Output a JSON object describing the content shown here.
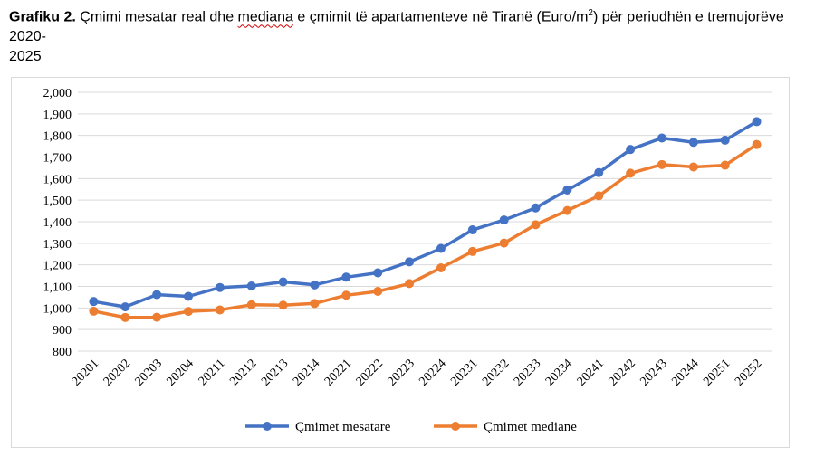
{
  "caption": {
    "label": "Grafiku 2.",
    "text_part1": "Çmimi mesatar real dhe ",
    "text_mediana": "mediana",
    "text_part2": " e çmimit të apartamenteve në Tiranë (Euro/m",
    "text_sup": "2",
    "text_part3": ") për periudhën e tremujorëve 2020-",
    "text_line3": "2025"
  },
  "chart_data": {
    "type": "line",
    "categories": [
      "20201",
      "20202",
      "20203",
      "20204",
      "20211",
      "20212",
      "20213",
      "20214",
      "20221",
      "20222",
      "20223",
      "20224",
      "20231",
      "20232",
      "20233",
      "20234",
      "20241",
      "20242",
      "20243",
      "20244",
      "20251",
      "20252"
    ],
    "series": [
      {
        "name": "Çmimet mesatare",
        "color": "#4472c4",
        "values": [
          1030,
          1005,
          1062,
          1054,
          1095,
          1102,
          1121,
          1107,
          1143,
          1163,
          1214,
          1276,
          1362,
          1408,
          1464,
          1547,
          1628,
          1735,
          1788,
          1768,
          1778,
          1864
        ]
      },
      {
        "name": "Çmimet mediane",
        "color": "#ed7d31",
        "values": [
          985,
          956,
          957,
          984,
          991,
          1015,
          1013,
          1021,
          1059,
          1077,
          1113,
          1186,
          1262,
          1301,
          1386,
          1452,
          1520,
          1625,
          1665,
          1654,
          1662,
          1758
        ]
      }
    ],
    "ylim": [
      800,
      2000
    ],
    "yticks": [
      "800",
      "900",
      "1,000",
      "1,100",
      "1,200",
      "1,300",
      "1,400",
      "1,500",
      "1,600",
      "1,700",
      "1,800",
      "1,900",
      "2,000"
    ],
    "grid": true,
    "legend_position": "bottom",
    "gridColor": "#d9d9d9"
  }
}
